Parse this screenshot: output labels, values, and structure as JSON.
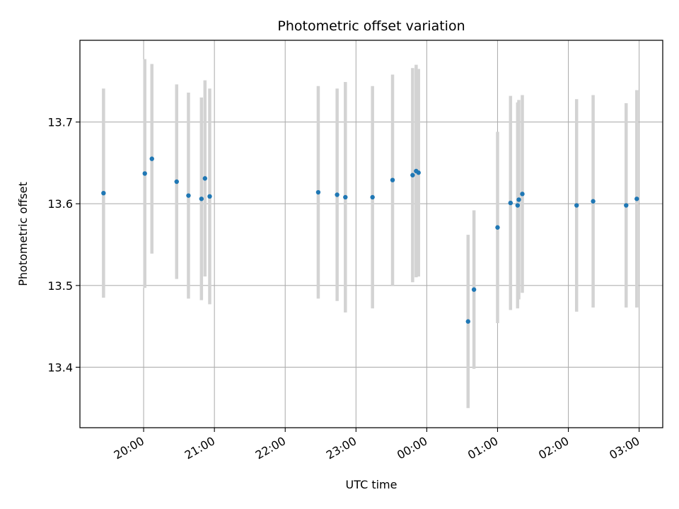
{
  "chart_data": {
    "type": "scatter",
    "title": "Photometric offset variation",
    "xlabel": "UTC time",
    "ylabel": "Photometric offset",
    "x_tick_labels": [
      "20:00",
      "21:00",
      "22:00",
      "23:00",
      "00:00",
      "01:00",
      "02:00",
      "03:00"
    ],
    "y_tick_labels": [
      "13.4",
      "13.5",
      "13.6",
      "13.7"
    ],
    "x_range": [
      "19:06",
      "03:20"
    ],
    "ylim": [
      13.326,
      13.8
    ],
    "grid": true,
    "legend": "none",
    "marker_color": "#1f77b4",
    "errorbar_color": "#d3d3d3",
    "points": [
      {
        "x": "19:26",
        "y": 13.613,
        "yerr": 0.128
      },
      {
        "x": "20:01",
        "y": 13.637,
        "yerr": 0.14
      },
      {
        "x": "20:07",
        "y": 13.655,
        "yerr": 0.116
      },
      {
        "x": "20:28",
        "y": 13.627,
        "yerr": 0.119
      },
      {
        "x": "20:38",
        "y": 13.61,
        "yerr": 0.126
      },
      {
        "x": "20:49",
        "y": 13.606,
        "yerr": 0.124
      },
      {
        "x": "20:52",
        "y": 13.631,
        "yerr": 0.12
      },
      {
        "x": "20:56",
        "y": 13.609,
        "yerr": 0.132
      },
      {
        "x": "22:28",
        "y": 13.614,
        "yerr": 0.13
      },
      {
        "x": "22:44",
        "y": 13.611,
        "yerr": 0.13
      },
      {
        "x": "22:51",
        "y": 13.608,
        "yerr": 0.141
      },
      {
        "x": "23:14",
        "y": 13.608,
        "yerr": 0.136
      },
      {
        "x": "23:31",
        "y": 13.629,
        "yerr": 0.129
      },
      {
        "x": "23:48",
        "y": 13.635,
        "yerr": 0.131
      },
      {
        "x": "23:51",
        "y": 13.64,
        "yerr": 0.13
      },
      {
        "x": "23:53",
        "y": 13.638,
        "yerr": 0.127
      },
      {
        "x": "00:35",
        "y": 13.456,
        "yerr": 0.106
      },
      {
        "x": "00:40",
        "y": 13.495,
        "yerr": 0.097
      },
      {
        "x": "01:00",
        "y": 13.571,
        "yerr": 0.117
      },
      {
        "x": "01:11",
        "y": 13.601,
        "yerr": 0.131
      },
      {
        "x": "01:17",
        "y": 13.598,
        "yerr": 0.126
      },
      {
        "x": "01:18",
        "y": 13.605,
        "yerr": 0.122
      },
      {
        "x": "01:21",
        "y": 13.612,
        "yerr": 0.121
      },
      {
        "x": "02:07",
        "y": 13.598,
        "yerr": 0.13
      },
      {
        "x": "02:21",
        "y": 13.603,
        "yerr": 0.13
      },
      {
        "x": "02:49",
        "y": 13.598,
        "yerr": 0.125
      },
      {
        "x": "02:58",
        "y": 13.606,
        "yerr": 0.133
      }
    ]
  }
}
